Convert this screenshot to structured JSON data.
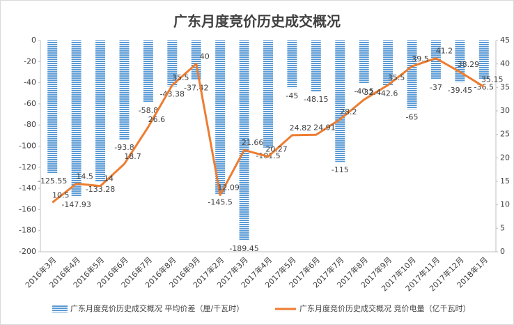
{
  "chart_data": {
    "type": "bar-line",
    "title": "广东月度竞价历史成交概况",
    "categories": [
      "2016年3月",
      "2016年4月",
      "2016年5月",
      "2016年6月",
      "2016年7月",
      "2016年8月",
      "2016年9月",
      "2017年2月",
      "2017年3月",
      "2017年4月",
      "2017年5月",
      "2017年6月",
      "2017年7月",
      "2017年8月",
      "2017年9月",
      "2017年10月",
      "2017年11月",
      "2017年12月",
      "2018年1月"
    ],
    "series": [
      {
        "name": "广东月度竞价历史成交概况 平均价差（厘/千瓦时）",
        "type": "bar",
        "color": "#5b9bd5",
        "values": [
          -125.55,
          -147.93,
          -133.28,
          -93.8,
          -58.8,
          -43.38,
          -37.42,
          -145.5,
          -189.45,
          -101.5,
          -45,
          -48.15,
          -115,
          -40.5,
          -42.6,
          -65,
          -37,
          -39.45,
          -36.5
        ]
      },
      {
        "name": "广东月度竞价历史成交概况 竞价电量（亿千瓦时）",
        "type": "line",
        "axis": "y2",
        "color": "#ed7d31",
        "values": [
          10.5,
          14.5,
          14,
          18.7,
          26.6,
          35.5,
          40,
          12.09,
          21.66,
          20.27,
          24.82,
          24.91,
          28.2,
          32.4,
          35.5,
          39.5,
          41.2,
          38.29,
          35.15
        ]
      }
    ],
    "ylim": [
      -200,
      0
    ],
    "yticks": [
      0,
      -20,
      -40,
      -60,
      -80,
      -100,
      -120,
      -140,
      -160,
      -180,
      -200
    ],
    "y2lim": [
      0,
      45
    ],
    "y2ticks": [
      0,
      5,
      10,
      15,
      20,
      25,
      30,
      35,
      40,
      45
    ],
    "legend": "bottom"
  }
}
